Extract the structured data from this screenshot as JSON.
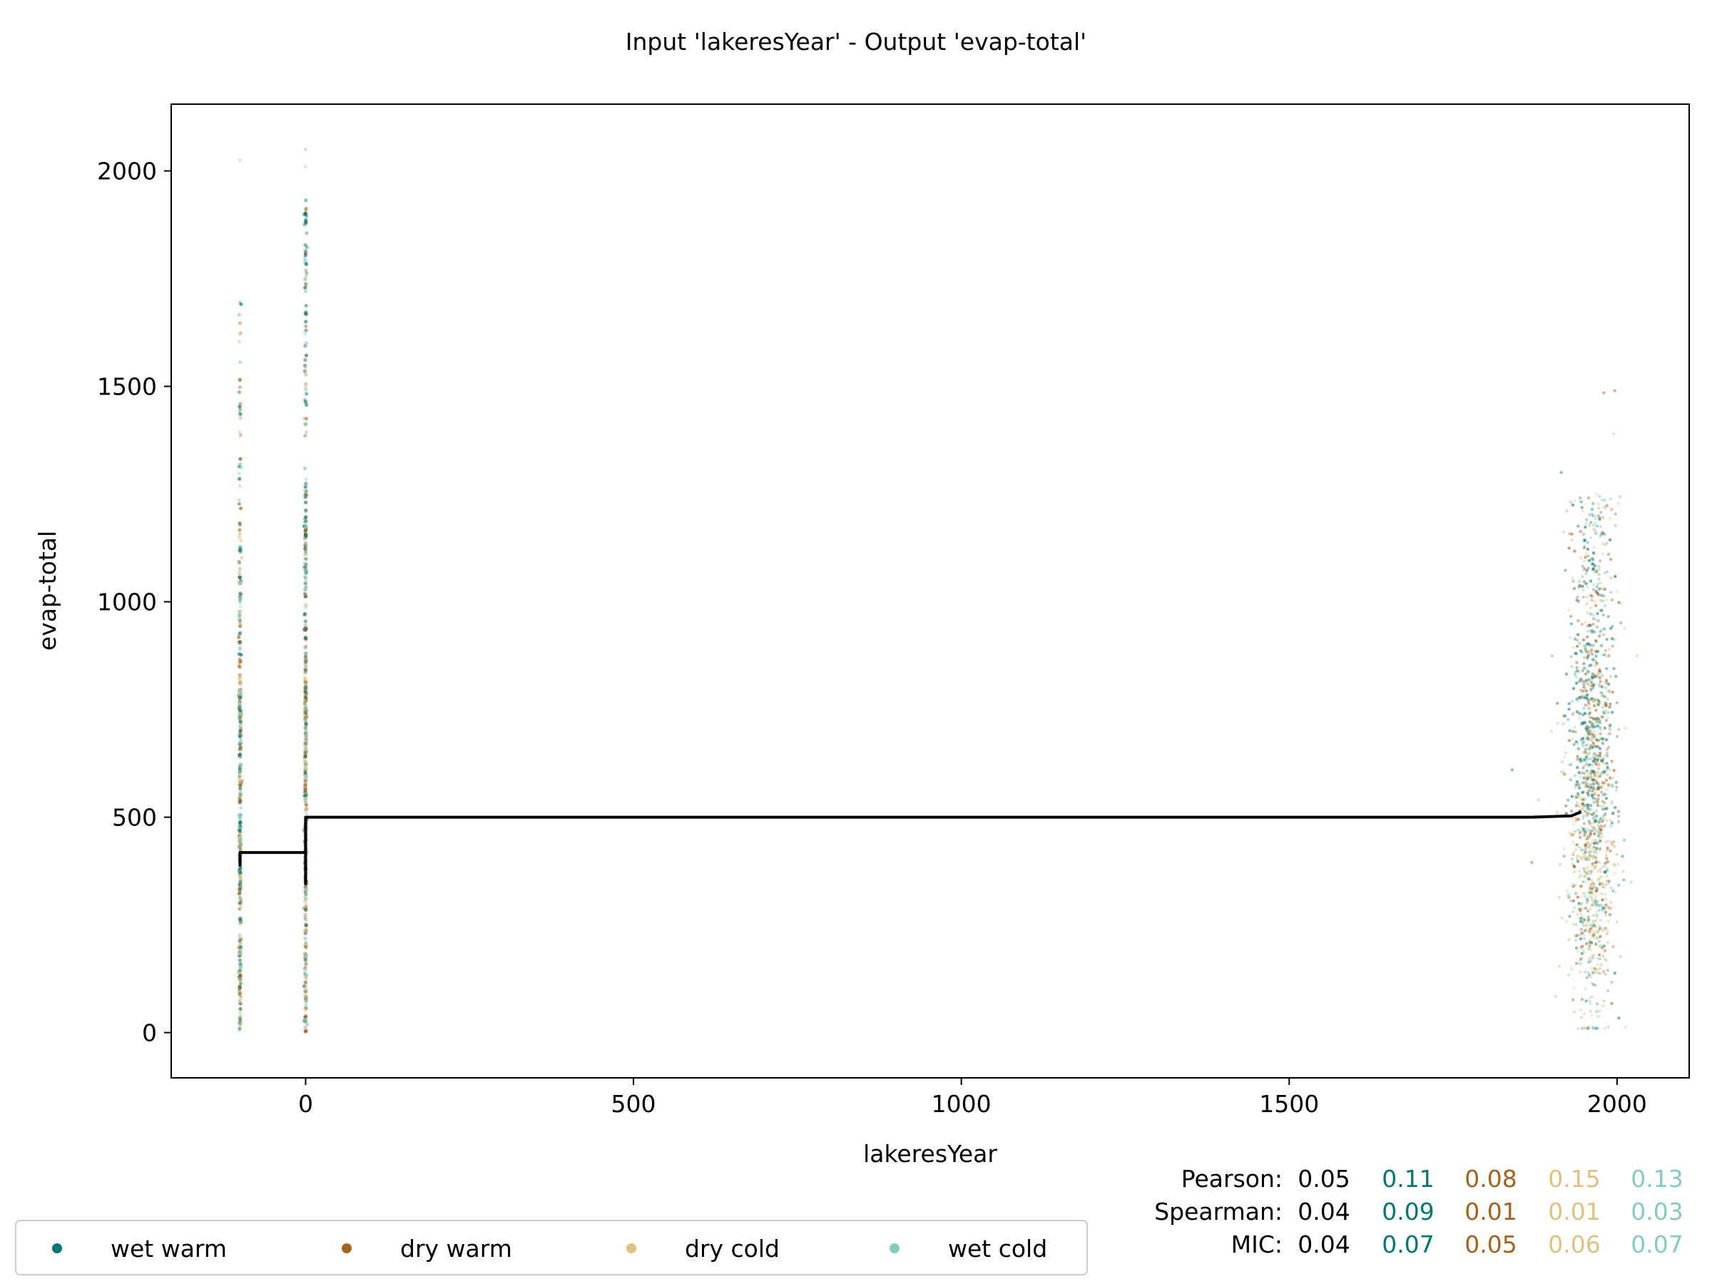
{
  "chart_data": {
    "type": "scatter",
    "title": "Input 'lakeresYear' - Output 'evap-total'",
    "xlabel": "lakeresYear",
    "ylabel": "evap-total",
    "xlim": [
      -205,
      2110
    ],
    "ylim": [
      -105,
      2155
    ],
    "x_ticks": [
      0,
      500,
      1000,
      1500,
      2000
    ],
    "y_ticks": [
      0,
      500,
      1000,
      1500,
      2000
    ],
    "grid": false,
    "legend_position": "bottom-left",
    "series": [
      {
        "name": "wet warm",
        "color": "#01796F"
      },
      {
        "name": "dry warm",
        "color": "#A6611A"
      },
      {
        "name": "dry cold",
        "color": "#DFC27D"
      },
      {
        "name": "wet cold",
        "color": "#80CDC1"
      }
    ],
    "clusters": [
      {
        "x": -100,
        "ymin": 0,
        "ymax": 2025,
        "note": "vertical stripe"
      },
      {
        "x": 0,
        "ymin": 0,
        "ymax": 2050,
        "note": "vertical stripe"
      },
      {
        "x_range": [
          1840,
          2000
        ],
        "y_range": [
          10,
          1490
        ],
        "center": 1960,
        "note": "dense cloud"
      }
    ],
    "trend_line": {
      "color": "#000000",
      "points": [
        [
          -100,
          385
        ],
        [
          -100,
          418
        ],
        [
          0,
          418
        ],
        [
          0,
          345
        ],
        [
          0,
          500
        ],
        [
          1870,
          500
        ],
        [
          1930,
          503
        ],
        [
          1945,
          512
        ]
      ]
    },
    "stats": {
      "rows": [
        {
          "label": "Pearson:",
          "values": [
            "0.05",
            "0.11",
            "0.08",
            "0.15",
            "0.13"
          ]
        },
        {
          "label": "Spearman:",
          "values": [
            "0.04",
            "0.09",
            "0.01",
            "0.01",
            "0.03"
          ]
        },
        {
          "label": "MIC:",
          "values": [
            "0.04",
            "0.07",
            "0.05",
            "0.06",
            "0.07"
          ]
        }
      ],
      "value_colors": [
        "#000000",
        "#01796F",
        "#A6611A",
        "#DFC27D",
        "#80CDC1"
      ]
    }
  }
}
